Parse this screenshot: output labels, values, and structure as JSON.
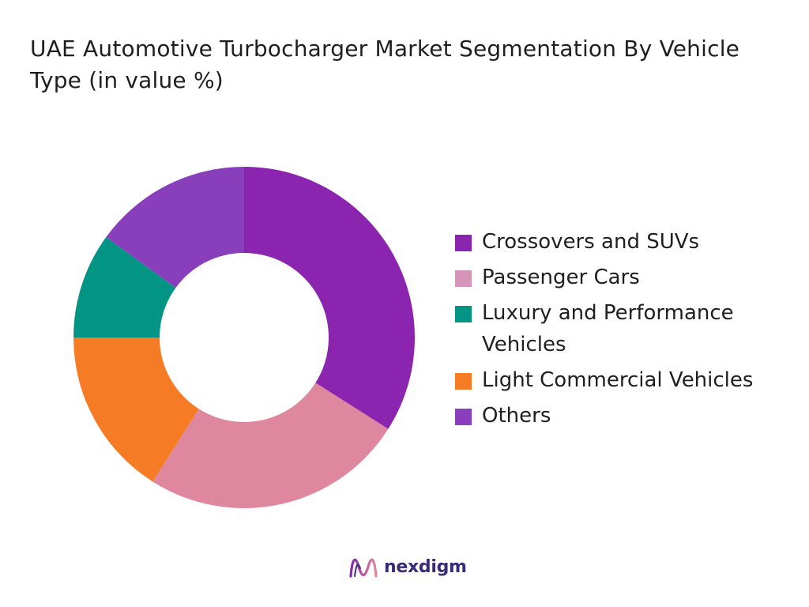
{
  "title": "UAE Automotive Turbocharger Market Segmentation By Vehicle Type (in value %)",
  "brand": {
    "name": "nexdigm",
    "logo_icon": "nexdigm-wave-logo-icon"
  },
  "chart_data": {
    "type": "pie",
    "donut": true,
    "title": "UAE Automotive Turbocharger Market Segmentation By Vehicle Type (in value %)",
    "legend_position": "right",
    "categories": [
      "Crossovers and SUVs",
      "Passenger Cars",
      "Light Commercial Vehicles",
      "Luxury and Performance Vehicles",
      "Others"
    ],
    "values": [
      34,
      25,
      16,
      10,
      15
    ],
    "colors": [
      "#8b24ae",
      "#df879f",
      "#f57c25",
      "#029585",
      "#893fbc"
    ]
  },
  "legend": {
    "items": [
      {
        "label": "Crossovers and SUVs",
        "color": "#8b24ae"
      },
      {
        "label": "Passenger Cars",
        "color": "#d694b9"
      },
      {
        "label": "Luxury and Performance Vehicles",
        "color": "#029585"
      },
      {
        "label": "Light Commercial Vehicles",
        "color": "#f57c25"
      },
      {
        "label": "Others",
        "color": "#893fbc"
      }
    ]
  }
}
